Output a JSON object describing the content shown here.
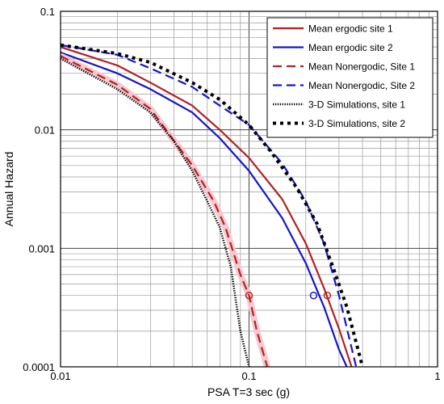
{
  "chart_data": {
    "type": "line",
    "xlabel": "PSA T=3 sec (g)",
    "ylabel": "Annual Hazard",
    "xscale": "log",
    "yscale": "log",
    "xlim": [
      0.01,
      1
    ],
    "ylim": [
      0.0001,
      0.1
    ],
    "x_tick_labels": [
      "0.01",
      "0.1",
      "1"
    ],
    "y_tick_labels": [
      "0.1",
      "0.01",
      "0.001",
      "0.0001"
    ],
    "grid": "major and minor",
    "legend_position": "top-right",
    "series": [
      {
        "name": "Mean ergodic site 1",
        "color": "#b22222",
        "style": "solid",
        "x": [
          0.01,
          0.02,
          0.03,
          0.05,
          0.07,
          0.1,
          0.15,
          0.2,
          0.25,
          0.3,
          0.35
        ],
        "y": [
          0.05,
          0.035,
          0.025,
          0.016,
          0.01,
          0.0058,
          0.0026,
          0.0011,
          0.00046,
          0.00021,
          0.0001
        ]
      },
      {
        "name": "Mean ergodic site 2",
        "color": "#1515c8",
        "style": "solid",
        "x": [
          0.01,
          0.02,
          0.03,
          0.05,
          0.07,
          0.1,
          0.15,
          0.2,
          0.25,
          0.3,
          0.33
        ],
        "y": [
          0.045,
          0.03,
          0.022,
          0.014,
          0.0085,
          0.0045,
          0.0018,
          0.00075,
          0.00032,
          0.00014,
          0.0001
        ]
      },
      {
        "name": "Mean Nonergodic, Site 1",
        "color": "#b22222",
        "style": "dashed",
        "x": [
          0.01,
          0.02,
          0.03,
          0.05,
          0.065,
          0.075,
          0.09,
          0.1,
          0.11,
          0.125
        ],
        "y": [
          0.042,
          0.024,
          0.015,
          0.005,
          0.0025,
          0.0015,
          0.0006,
          0.0004,
          0.0002,
          0.0001
        ]
      },
      {
        "name": "Mean Nonergodic, Site 2",
        "color": "#1515c8",
        "style": "dashed",
        "x": [
          0.01,
          0.02,
          0.03,
          0.05,
          0.07,
          0.1,
          0.15,
          0.2,
          0.25,
          0.3,
          0.37
        ],
        "y": [
          0.052,
          0.043,
          0.033,
          0.023,
          0.016,
          0.011,
          0.0052,
          0.0025,
          0.0011,
          0.0004,
          0.0001
        ]
      },
      {
        "name": "3-D Simulations, site 1",
        "color": "#000000",
        "style": "dotted-fine",
        "x": [
          0.01,
          0.02,
          0.03,
          0.04,
          0.05,
          0.06,
          0.07,
          0.08,
          0.09,
          0.1
        ],
        "y": [
          0.04,
          0.022,
          0.014,
          0.008,
          0.0045,
          0.0025,
          0.0015,
          0.0007,
          0.0002,
          0.0001
        ]
      },
      {
        "name": "3-D Simulations, site 2",
        "color": "#000000",
        "style": "dotted-bold",
        "x": [
          0.01,
          0.02,
          0.03,
          0.05,
          0.07,
          0.1,
          0.13,
          0.18,
          0.23,
          0.28,
          0.33,
          0.4
        ],
        "y": [
          0.052,
          0.044,
          0.037,
          0.025,
          0.018,
          0.011,
          0.0066,
          0.0032,
          0.0016,
          0.00068,
          0.00032,
          0.0001
        ]
      }
    ],
    "markers": [
      {
        "series": "Mean Nonergodic, Site 1",
        "x": 0.1,
        "y": 0.0004,
        "color": "#b22222"
      },
      {
        "series": "Mean ergodic site 2",
        "x": 0.22,
        "y": 0.0004,
        "color": "#1515c8"
      },
      {
        "series": "Mean ergodic site 1",
        "x": 0.26,
        "y": 0.0004,
        "color": "#b22222"
      }
    ]
  }
}
